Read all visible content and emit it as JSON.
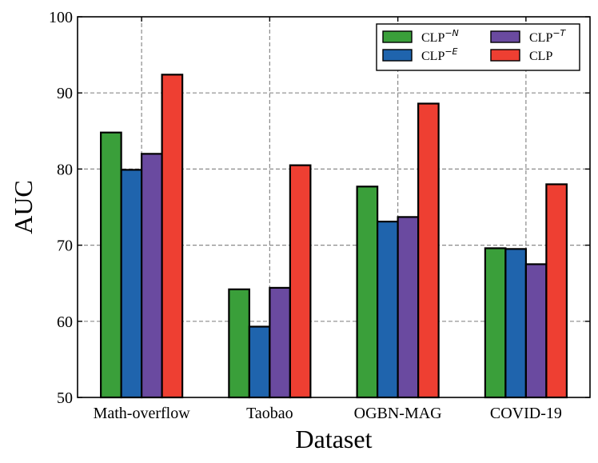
{
  "chart_data": {
    "type": "bar",
    "title": "",
    "xlabel": "Dataset",
    "ylabel": "AUC",
    "ylim": [
      50,
      100
    ],
    "yticks": [
      50,
      60,
      70,
      80,
      90,
      100
    ],
    "grid": true,
    "legend_position": "top-right",
    "categories": [
      "Math-overflow",
      "Taobao",
      "OGBN-MAG",
      "COVID-19"
    ],
    "series": [
      {
        "name": "CLP",
        "sup": "−N",
        "color": "#3a9f3a",
        "values": [
          84.8,
          64.2,
          77.7,
          69.6
        ]
      },
      {
        "name": "CLP",
        "sup": "−E",
        "color": "#1f64ad",
        "values": [
          79.9,
          59.3,
          73.1,
          69.5
        ]
      },
      {
        "name": "CLP",
        "sup": "−T",
        "color": "#6a4aa0",
        "values": [
          82.0,
          64.4,
          73.7,
          67.5
        ]
      },
      {
        "name": "CLP",
        "sup": "",
        "color": "#ee3f32",
        "values": [
          92.4,
          80.5,
          88.6,
          78.0
        ]
      }
    ]
  }
}
